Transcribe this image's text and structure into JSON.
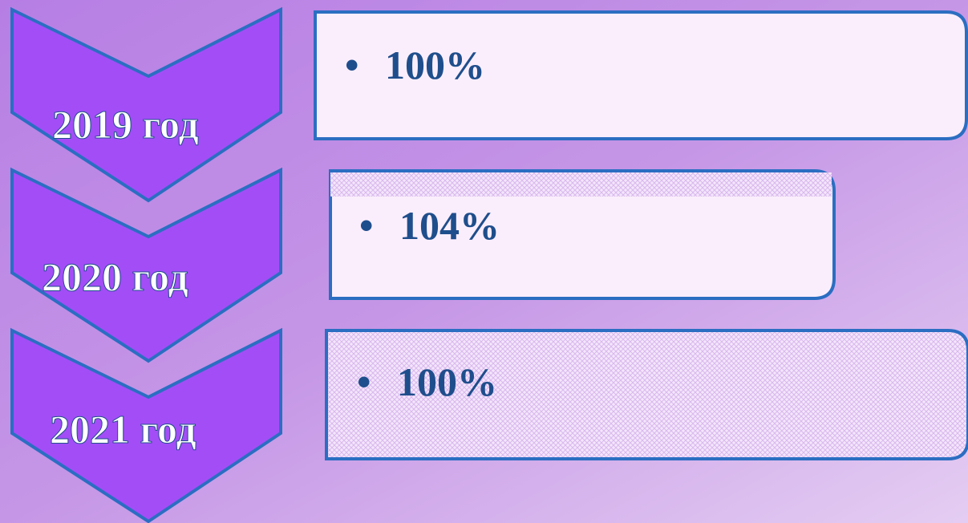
{
  "items": [
    {
      "label": "2019 год",
      "text": "100%"
    },
    {
      "label": "2020 год",
      "text": "104%"
    },
    {
      "label": "2021 год",
      "text": "100%"
    }
  ]
}
